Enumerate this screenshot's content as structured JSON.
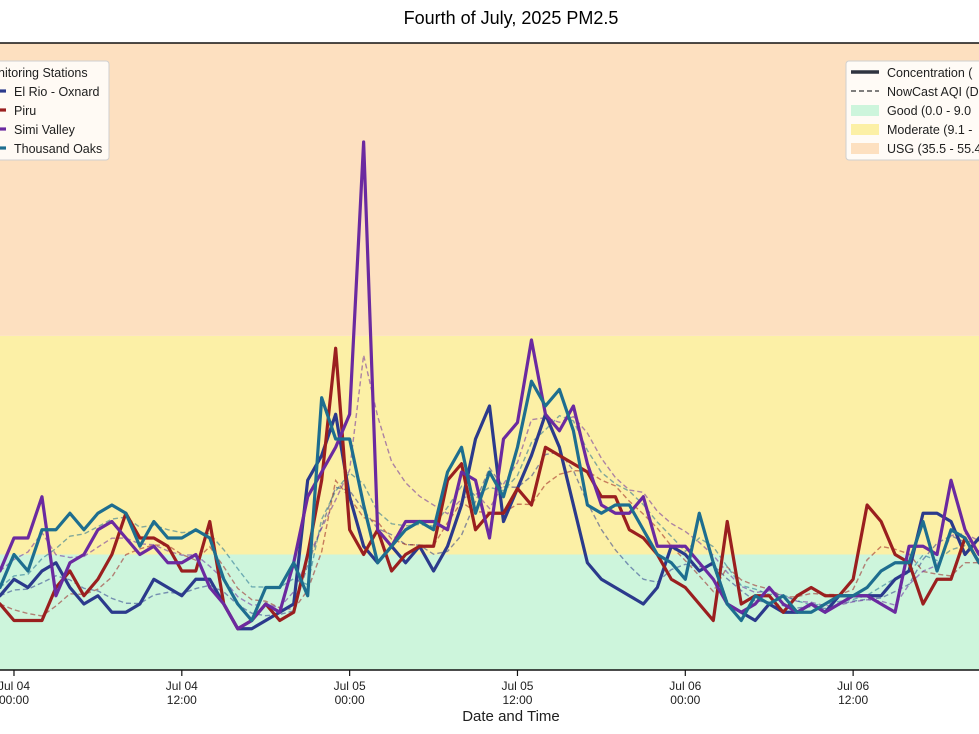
{
  "chart_data": {
    "type": "line",
    "title": "Fourth of July, 2025 PM2.5",
    "xlabel": "Date and Time",
    "ylabel": "",
    "x_ticks": [
      {
        "date": "Jul 04",
        "time": "00:00",
        "x": "2025-07-04T00:00"
      },
      {
        "date": "Jul 04",
        "time": "12:00",
        "x": "2025-07-04T12:00"
      },
      {
        "date": "Jul 05",
        "time": "00:00",
        "x": "2025-07-05T00:00"
      },
      {
        "date": "Jul 05",
        "time": "12:00",
        "x": "2025-07-05T12:00"
      },
      {
        "date": "Jul 06",
        "time": "00:00",
        "x": "2025-07-06T00:00"
      },
      {
        "date": "Jul 06",
        "time": "12:00",
        "x": "2025-07-06T12:00"
      }
    ],
    "xlim": [
      "2025-07-03T23:00",
      "2025-07-06T21:00"
    ],
    "ylim": [
      -5,
      71
    ],
    "bands": [
      {
        "label": "Good (0.0 - 9.0",
        "from": -5,
        "to": 9.0,
        "color": "#cdf5dc"
      },
      {
        "label": "Moderate (9.1 -",
        "from": 9.0,
        "to": 35.5,
        "color": "#fcf0a6"
      },
      {
        "label": "USG (35.5 - 55.4",
        "from": 35.5,
        "to": 71,
        "color": "#fde0c0"
      }
    ],
    "station_legend": {
      "title": "nitoring Stations",
      "placement": "top-left"
    },
    "style_legend": {
      "placement": "top-right",
      "concentration_label": "Concentration (",
      "nowcast_label": "NowCast AQI (D"
    },
    "series": [
      {
        "name": "El Rio - Oxnard",
        "color": "#2b3a8c",
        "values": [
          4,
          6,
          5,
          7,
          8,
          5,
          3,
          4,
          2,
          2,
          3,
          6,
          5,
          4,
          6,
          6,
          3,
          0,
          0,
          1,
          2,
          3,
          18,
          21,
          26,
          16,
          10,
          8,
          10,
          8,
          10,
          7,
          10,
          15,
          23,
          27,
          13,
          17,
          21,
          26,
          22,
          15,
          8,
          6,
          5,
          4,
          3,
          5,
          10,
          9,
          7,
          8,
          3,
          2,
          1,
          3,
          2,
          2,
          3,
          2,
          4,
          4,
          4,
          4,
          6,
          7,
          14,
          14,
          13,
          9,
          11,
          8,
          9,
          8,
          7,
          10,
          9,
          9,
          8,
          4,
          9
        ]
      },
      {
        "name": "Piru",
        "color": "#9a1f1f",
        "values": [
          3,
          1,
          1,
          1,
          5,
          7,
          4,
          6,
          9,
          14,
          11,
          11,
          10,
          7,
          7,
          13,
          3,
          0,
          1,
          3,
          1,
          2,
          9,
          18,
          34,
          12,
          9,
          12,
          7,
          9,
          10,
          10,
          18,
          20,
          12,
          14,
          14,
          17,
          15,
          22,
          21,
          20,
          19,
          16,
          16,
          12,
          11,
          9,
          6,
          5,
          3,
          1,
          13,
          3,
          4,
          4,
          2,
          4,
          5,
          4,
          4,
          6,
          15,
          13,
          9,
          8,
          3,
          6,
          6,
          11,
          8,
          11,
          10,
          7,
          2,
          5,
          12,
          13,
          9,
          9,
          9
        ]
      },
      {
        "name": "Simi Valley",
        "color": "#6b2aa0",
        "values": [
          7,
          11,
          11,
          16,
          4,
          8,
          9,
          12,
          13,
          11,
          9,
          10,
          8,
          8,
          9,
          5,
          3,
          0,
          1,
          3,
          2,
          8,
          16,
          19,
          22,
          26,
          59,
          12,
          10,
          13,
          13,
          13,
          12,
          19,
          18,
          11,
          23,
          25,
          35,
          26,
          24,
          27,
          20,
          15,
          14,
          14,
          16,
          10,
          10,
          10,
          8,
          6,
          3,
          2,
          3,
          5,
          3,
          2,
          3,
          2,
          3,
          4,
          4,
          3,
          2,
          10,
          10,
          9,
          18,
          12,
          9,
          14,
          10,
          7,
          7,
          8,
          13,
          8,
          8,
          8,
          12
        ]
      },
      {
        "name": "Thousand Oaks",
        "color": "#1e6e8f",
        "values": [
          5,
          9,
          7,
          12,
          12,
          14,
          12,
          14,
          15,
          14,
          10,
          13,
          11,
          11,
          12,
          11,
          6,
          3,
          1,
          5,
          5,
          8,
          4,
          28,
          23,
          23,
          15,
          8,
          10,
          12,
          13,
          12,
          19,
          22,
          14,
          19,
          16,
          22,
          30,
          27,
          29,
          24,
          15,
          14,
          15,
          15,
          12,
          9,
          8,
          6,
          14,
          8,
          3,
          1,
          4,
          3,
          4,
          2,
          2,
          3,
          4,
          4,
          5,
          7,
          8,
          8,
          13,
          7,
          12,
          11,
          8,
          13,
          9,
          15,
          10,
          12,
          10,
          10,
          8,
          7,
          5
        ]
      }
    ]
  }
}
